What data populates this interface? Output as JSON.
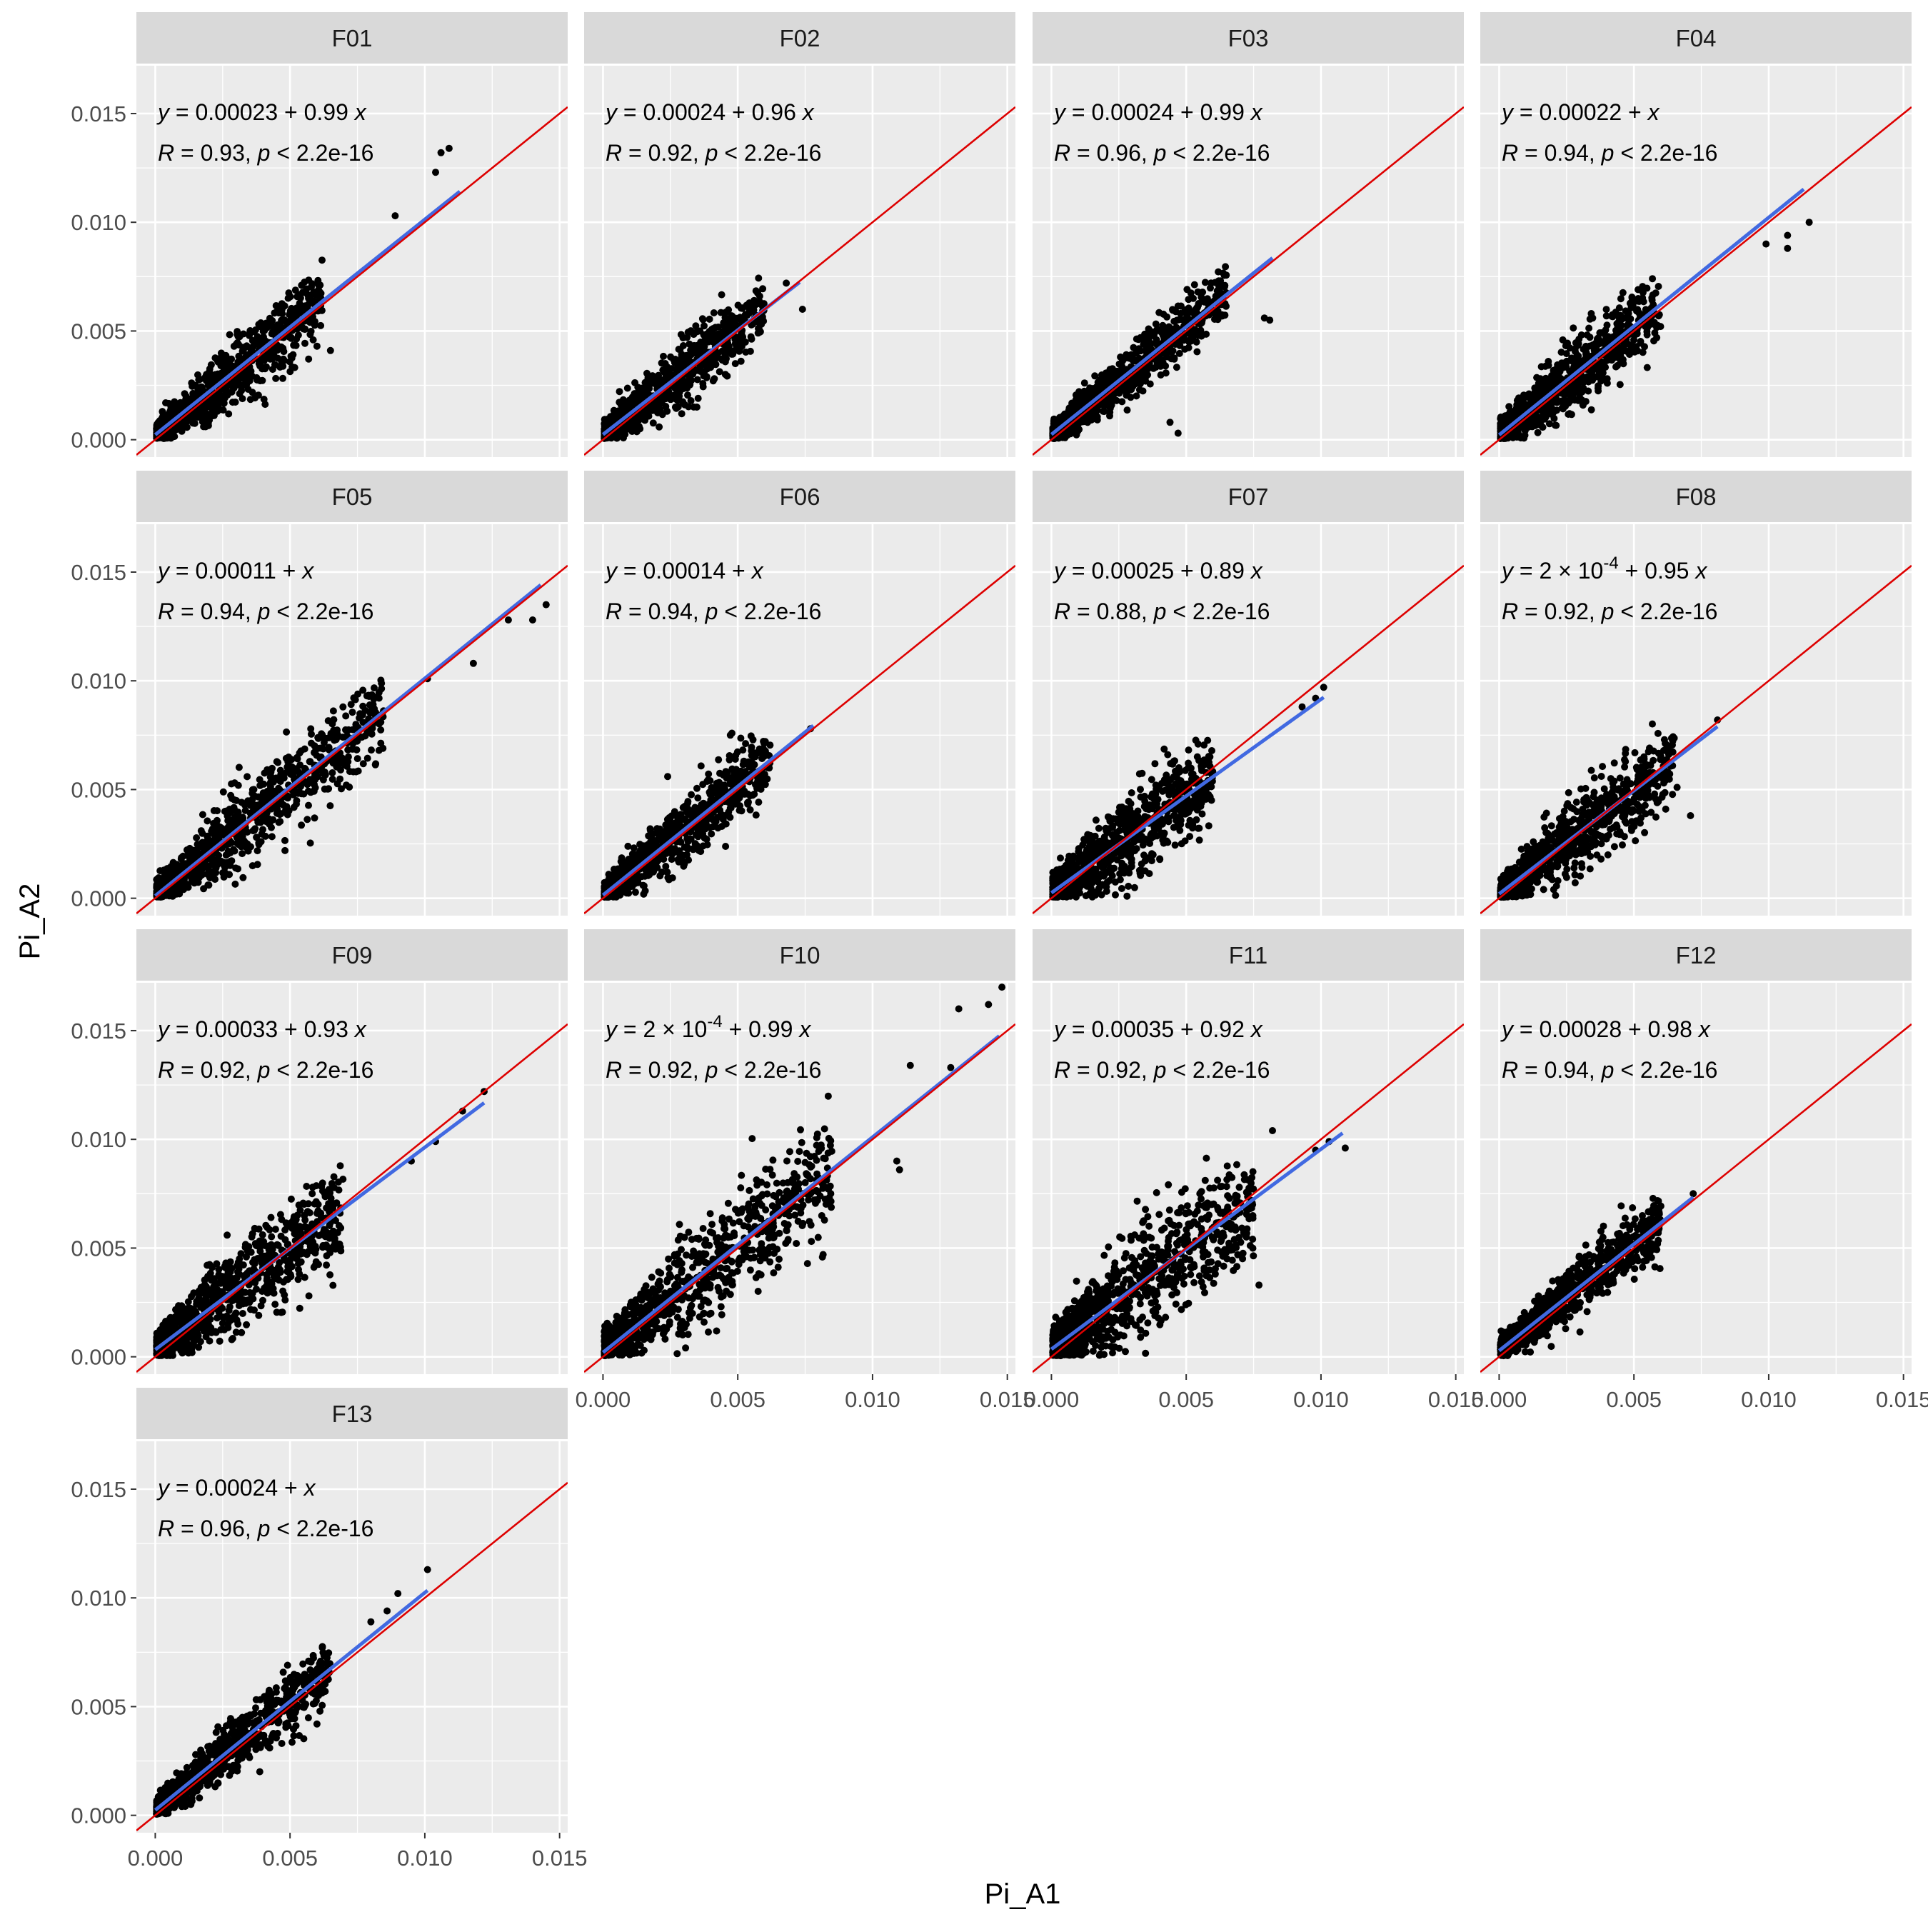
{
  "colors": {
    "panel_bg": "#ebebeb",
    "strip_bg": "#d9d9d9",
    "grid_major": "#ffffff",
    "points": "#000000",
    "fit_line": "#4169e1",
    "identity_line": "#dd0000"
  },
  "chart_data": {
    "type": "scatter",
    "layout": "facet_wrap 4 columns",
    "xlabel": "Pi_A1",
    "ylabel": "Pi_A2",
    "xlim": [
      -0.0007,
      0.0153
    ],
    "ylim": [
      -0.0008,
      0.0172
    ],
    "x_ticks": [
      0.0,
      0.005,
      0.01,
      0.015
    ],
    "x_tick_labels": [
      "0.000",
      "0.005",
      "0.010",
      "0.015"
    ],
    "y_ticks": [
      0.0,
      0.005,
      0.01,
      0.015
    ],
    "y_tick_labels": [
      "0.000",
      "0.005",
      "0.010",
      "0.015"
    ],
    "grid": true,
    "reference_line": "y = x",
    "panels": [
      {
        "facet": "F01",
        "eq_prefix": "= 0.00023 + 0.99",
        "eq_exp": "",
        "eq_suffix": "",
        "r": "= 0.93,",
        "p": "< 2.2e-16",
        "intercept": 0.00023,
        "slope": 0.99,
        "x_max": 0.0113,
        "x_extent": 0.0095,
        "cloud_end": 0.0062,
        "spread": 0.0006,
        "outliers": [
          [
            0.0109,
            0.0134
          ],
          [
            0.0106,
            0.0132
          ],
          [
            0.0104,
            0.0123
          ],
          [
            0.0089,
            0.0103
          ],
          [
            0.0065,
            0.0041
          ],
          [
            0.006,
            0.0043
          ]
        ]
      },
      {
        "facet": "F02",
        "eq_prefix": "= 0.00024 + 0.96",
        "eq_exp": "",
        "eq_suffix": "",
        "r": "= 0.92,",
        "p": "< 2.2e-16",
        "intercept": 0.00024,
        "slope": 0.96,
        "x_max": 0.0073,
        "x_extent": 0.0072,
        "cloud_end": 0.006,
        "spread": 0.0006,
        "outliers": [
          [
            0.0074,
            0.006
          ],
          [
            0.0068,
            0.0072
          ]
        ]
      },
      {
        "facet": "F03",
        "eq_prefix": "= 0.00024 + 0.99",
        "eq_exp": "",
        "eq_suffix": "",
        "r": "= 0.96,",
        "p": "< 2.2e-16",
        "intercept": 0.00024,
        "slope": 0.99,
        "x_max": 0.0082,
        "x_extent": 0.0082,
        "cloud_end": 0.0065,
        "spread": 0.0005,
        "outliers": [
          [
            0.0081,
            0.0055
          ],
          [
            0.0079,
            0.0056
          ],
          [
            0.0044,
            0.0008
          ],
          [
            0.0047,
            0.0003
          ]
        ]
      },
      {
        "facet": "F04",
        "eq_prefix": "= 0.00022 +",
        "eq_exp": "",
        "eq_suffix": "",
        "r": "= 0.94,",
        "p": "< 2.2e-16",
        "intercept": 0.00022,
        "slope": 1.0,
        "x_max": 0.0113,
        "x_extent": 0.0113,
        "cloud_end": 0.006,
        "spread": 0.0006,
        "outliers": [
          [
            0.0115,
            0.01
          ],
          [
            0.0107,
            0.0094
          ],
          [
            0.0107,
            0.0088
          ],
          [
            0.0099,
            0.009
          ]
        ]
      },
      {
        "facet": "F05",
        "eq_prefix": "= 0.00011 +",
        "eq_exp": "",
        "eq_suffix": "",
        "r": "= 0.94,",
        "p": "< 2.2e-16",
        "intercept": 0.00011,
        "slope": 1.0,
        "x_max": 0.0143,
        "x_extent": 0.0143,
        "cloud_end": 0.0085,
        "spread": 0.0007,
        "outliers": [
          [
            0.0145,
            0.0135
          ],
          [
            0.014,
            0.0128
          ],
          [
            0.0131,
            0.0128
          ],
          [
            0.0118,
            0.0108
          ],
          [
            0.0101,
            0.0101
          ],
          [
            0.0083,
            0.0068
          ]
        ]
      },
      {
        "facet": "F06",
        "eq_prefix": "= 0.00014 +",
        "eq_exp": "",
        "eq_suffix": "",
        "r": "= 0.94,",
        "p": "< 2.2e-16",
        "intercept": 0.00014,
        "slope": 1.0,
        "x_max": 0.0078,
        "x_extent": 0.0078,
        "cloud_end": 0.0062,
        "spread": 0.0006,
        "outliers": [
          [
            0.0077,
            0.0078
          ],
          [
            0.0024,
            0.0056
          ]
        ]
      },
      {
        "facet": "F07",
        "eq_prefix": "= 0.00025 + 0.89",
        "eq_exp": "",
        "eq_suffix": "",
        "r": "= 0.88,",
        "p": "< 2.2e-16",
        "intercept": 0.00025,
        "slope": 0.89,
        "x_max": 0.0101,
        "x_extent": 0.0101,
        "cloud_end": 0.006,
        "spread": 0.0008,
        "outliers": [
          [
            0.0101,
            0.0097
          ],
          [
            0.0093,
            0.0088
          ],
          [
            0.0098,
            0.0092
          ]
        ]
      },
      {
        "facet": "F08",
        "eq_prefix": "= 2",
        "eq_exp": "-4",
        "eq_suffix": "+ 0.95",
        "r": "= 0.92,",
        "p": "< 2.2e-16",
        "intercept": 0.0002,
        "slope": 0.95,
        "x_max": 0.0081,
        "x_extent": 0.0081,
        "cloud_end": 0.0065,
        "spread": 0.0007,
        "outliers": [
          [
            0.0081,
            0.0082
          ],
          [
            0.0071,
            0.0038
          ],
          [
            0.0066,
            0.0051
          ]
        ]
      },
      {
        "facet": "F09",
        "eq_prefix": "= 0.00033 + 0.93",
        "eq_exp": "",
        "eq_suffix": "",
        "r": "= 0.92,",
        "p": "< 2.2e-16",
        "intercept": 0.00033,
        "slope": 0.93,
        "x_max": 0.0122,
        "x_extent": 0.0122,
        "cloud_end": 0.007,
        "spread": 0.0008,
        "outliers": [
          [
            0.0122,
            0.0122
          ],
          [
            0.0114,
            0.0113
          ],
          [
            0.0104,
            0.0099
          ],
          [
            0.0095,
            0.009
          ],
          [
            0.0057,
            0.0028
          ]
        ]
      },
      {
        "facet": "F10",
        "eq_prefix": "= 2",
        "eq_exp": "-4",
        "eq_suffix": "+ 0.99",
        "r": "= 0.92,",
        "p": "< 2.2e-16",
        "intercept": 0.0002,
        "slope": 0.99,
        "x_max": 0.0147,
        "x_extent": 0.0147,
        "cloud_end": 0.0085,
        "spread": 0.0009,
        "outliers": [
          [
            0.0148,
            0.017
          ],
          [
            0.0143,
            0.0162
          ],
          [
            0.0132,
            0.016
          ],
          [
            0.0114,
            0.0134
          ],
          [
            0.0129,
            0.0133
          ],
          [
            0.0109,
            0.009
          ],
          [
            0.011,
            0.0086
          ]
        ]
      },
      {
        "facet": "F11",
        "eq_prefix": "= 0.00035 + 0.92",
        "eq_exp": "",
        "eq_suffix": "",
        "r": "= 0.92,",
        "p": "< 2.2e-16",
        "intercept": 0.00035,
        "slope": 0.92,
        "x_max": 0.0108,
        "x_extent": 0.0108,
        "cloud_end": 0.0075,
        "spread": 0.001,
        "outliers": [
          [
            0.0109,
            0.0096
          ],
          [
            0.0103,
            0.0099
          ],
          [
            0.0098,
            0.0095
          ],
          [
            0.0082,
            0.0104
          ],
          [
            0.0077,
            0.0033
          ]
        ]
      },
      {
        "facet": "F12",
        "eq_prefix": "= 0.00028 + 0.98",
        "eq_exp": "",
        "eq_suffix": "",
        "r": "= 0.94,",
        "p": "< 2.2e-16",
        "intercept": 0.00028,
        "slope": 0.98,
        "x_max": 0.0072,
        "x_extent": 0.0072,
        "cloud_end": 0.006,
        "spread": 0.0005,
        "outliers": [
          [
            0.0072,
            0.0075
          ],
          [
            0.0059,
            0.0057
          ]
        ]
      },
      {
        "facet": "F13",
        "eq_prefix": "= 0.00024 +",
        "eq_exp": "",
        "eq_suffix": "",
        "r": "= 0.96,",
        "p": "< 2.2e-16",
        "intercept": 0.00024,
        "slope": 1.0,
        "x_max": 0.0101,
        "x_extent": 0.0101,
        "cloud_end": 0.0065,
        "spread": 0.0005,
        "outliers": [
          [
            0.0101,
            0.0113
          ],
          [
            0.009,
            0.0102
          ],
          [
            0.0086,
            0.0094
          ],
          [
            0.008,
            0.0089
          ],
          [
            0.006,
            0.0042
          ]
        ]
      }
    ]
  }
}
